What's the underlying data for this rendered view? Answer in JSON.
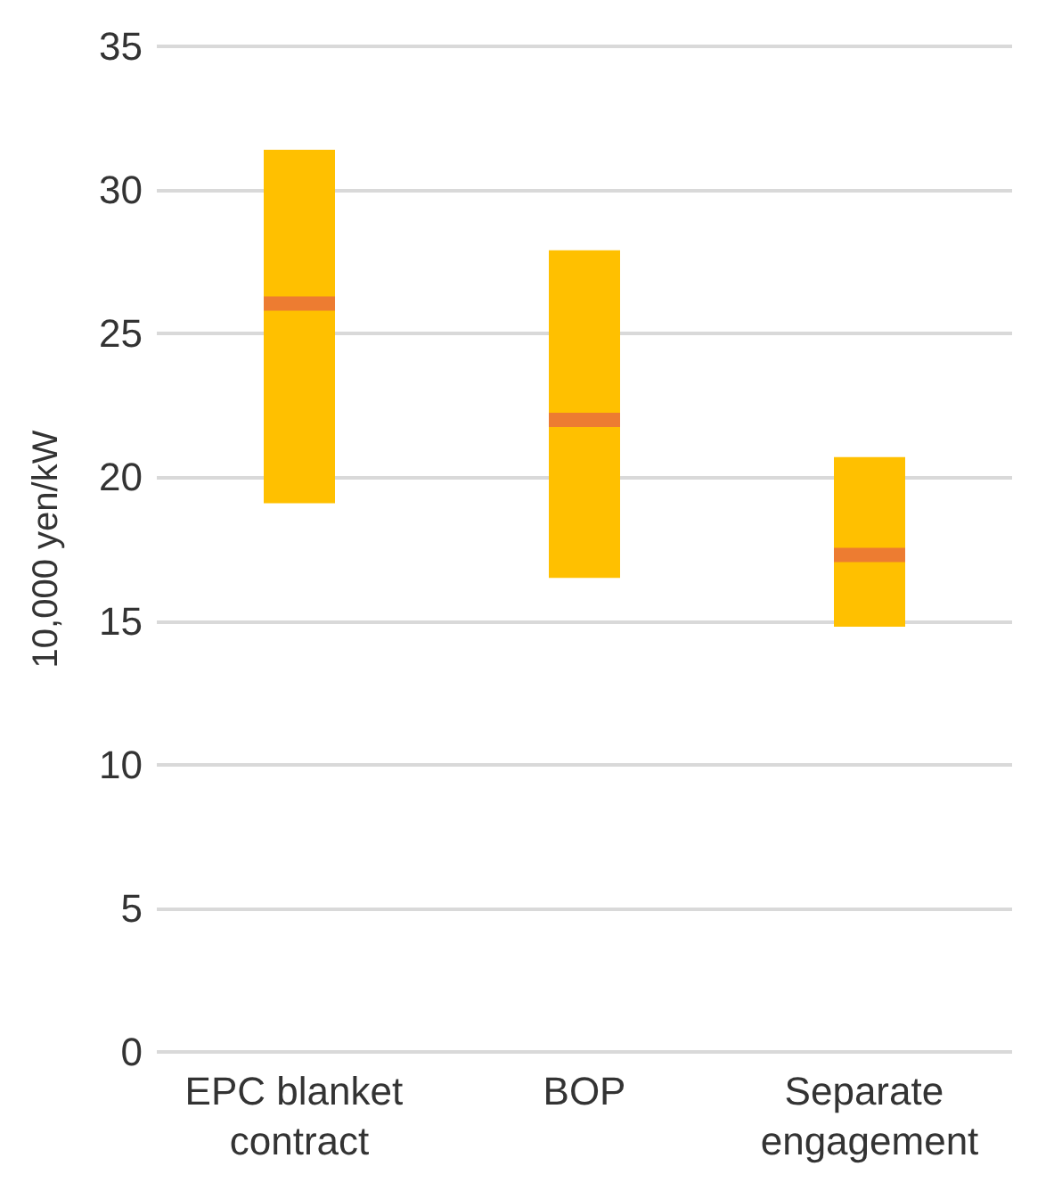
{
  "chart_data": {
    "type": "box",
    "ylabel": "10,000 yen/kW",
    "categories": [
      "EPC blanket contract",
      "BOP",
      "Separate engagement"
    ],
    "ylim": [
      0,
      35
    ],
    "yticks": [
      0,
      5,
      10,
      15,
      20,
      25,
      30,
      35
    ],
    "grid": "y",
    "series": [
      {
        "color": "#ffc000",
        "boxes": [
          {
            "low": 19.1,
            "q1": 19.1,
            "median": 26.05,
            "q3": 31.4,
            "high": 31.4
          },
          {
            "low": 16.5,
            "q1": 16.5,
            "median": 22.0,
            "q3": 27.9,
            "high": 27.9
          },
          {
            "low": 14.8,
            "q1": 14.8,
            "median": 17.3,
            "q3": 20.7,
            "high": 20.7
          }
        ]
      }
    ]
  }
}
